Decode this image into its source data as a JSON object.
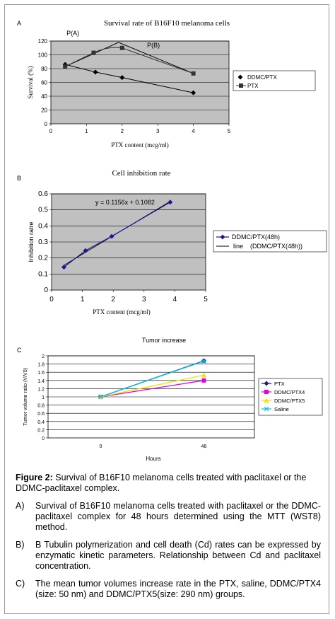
{
  "figure": {
    "title_label": "Figure 2:",
    "title_text": "Survival of B16F10 melanoma cells treated with paclitaxel or the DDMC-paclitaxel complex.",
    "items": [
      {
        "label": "A)",
        "text": "Survival of B16F10 melanoma cells treated with paclitaxel or the DDMC-paclitaxel complex for 48 hours determined using the MTT (WST8) method."
      },
      {
        "label": "B)",
        "text": "B Tubulin polymerization and cell death (Cd) rates can be expressed by enzymatic kinetic parameters. Relationship between Cd and paclitaxel concentration."
      },
      {
        "label": "C)",
        "text": "The mean tumor volumes increase rate in the PTX, saline, DDMC/PTX4 (size: 50 nm) and DDMC/PTX5(size: 290 nm) groups."
      }
    ]
  },
  "chart_data": [
    {
      "panel": "A",
      "type": "line",
      "title": "Survival rate of B16F10 melanoma cells",
      "xlabel": "PTX content (mcg/ml)",
      "ylabel": "Survival (%)",
      "xlim": [
        0,
        5
      ],
      "ylim": [
        0,
        120
      ],
      "xticks": [
        0,
        1,
        2,
        3,
        4,
        5
      ],
      "yticks": [
        0,
        20,
        40,
        60,
        80,
        100,
        120
      ],
      "grid": "horizontal",
      "legend": "right",
      "annotations": [
        "P(A)",
        "P(B)"
      ],
      "series": [
        {
          "name": "DDMC/PTX",
          "color": "#000000",
          "marker": "diamond",
          "x": [
            0.4,
            1.25,
            2.0,
            4.0
          ],
          "y": [
            86,
            75,
            67,
            45
          ]
        },
        {
          "name": "PTX",
          "color": "#333333",
          "marker": "square",
          "x": [
            0.4,
            1.2,
            2.0,
            4.0
          ],
          "y": [
            83,
            103,
            110,
            73
          ]
        }
      ],
      "extra_line": {
        "x": [
          0.4,
          1.9,
          4.0
        ],
        "y": [
          83,
          118,
          73
        ]
      }
    },
    {
      "panel": "B",
      "type": "line",
      "title": "Cell inhibition rate",
      "xlabel": "PTX content (mcg/ml)",
      "ylabel": "Inhibition ratre",
      "xlim": [
        0,
        5
      ],
      "ylim": [
        0,
        0.6
      ],
      "xticks": [
        0,
        1,
        2,
        3,
        4,
        5
      ],
      "yticks": [
        0,
        0.1,
        0.2,
        0.3,
        0.4,
        0.5,
        0.6
      ],
      "grid": "horizontal",
      "legend": "right",
      "equation": "y = 0.1156x + 0.1082",
      "series": [
        {
          "name": "DDMC/PTX(48h)",
          "color": "#1a1a8c",
          "marker": "diamond",
          "x": [
            0.4,
            1.1,
            1.95,
            3.85
          ],
          "y": [
            0.143,
            0.246,
            0.335,
            0.548
          ]
        }
      ],
      "trendline": {
        "name_left": "line",
        "name_right": "(DDMC/PTX(48h))",
        "slope": 0.1156,
        "intercept": 0.1082,
        "x": [
          0.4,
          3.85
        ]
      }
    },
    {
      "panel": "C",
      "type": "line",
      "title": "Tumor increase",
      "xlabel": "Hours",
      "ylabel": "Tumor volume ratio (V/V0)",
      "categories": [
        "0",
        "48"
      ],
      "ylim": [
        0,
        2
      ],
      "yticks": [
        0,
        0.2,
        0.4,
        0.6,
        0.8,
        1,
        1.2,
        1.4,
        1.6,
        1.8,
        2
      ],
      "grid": "horizontal",
      "legend": "right",
      "series": [
        {
          "name": "PTX",
          "color": "#1a1a8c",
          "marker": "diamond",
          "values": [
            1.0,
            1.88
          ]
        },
        {
          "name": "DDMC/PTX4",
          "color": "#e000e0",
          "marker": "square",
          "values": [
            1.0,
            1.4
          ]
        },
        {
          "name": "DDMC/PTX5",
          "color": "#f2e200",
          "marker": "triangle",
          "values": [
            1.0,
            1.53
          ]
        },
        {
          "name": "Saline",
          "color": "#00c8e0",
          "marker": "x",
          "values": [
            1.0,
            1.87
          ]
        }
      ]
    }
  ]
}
